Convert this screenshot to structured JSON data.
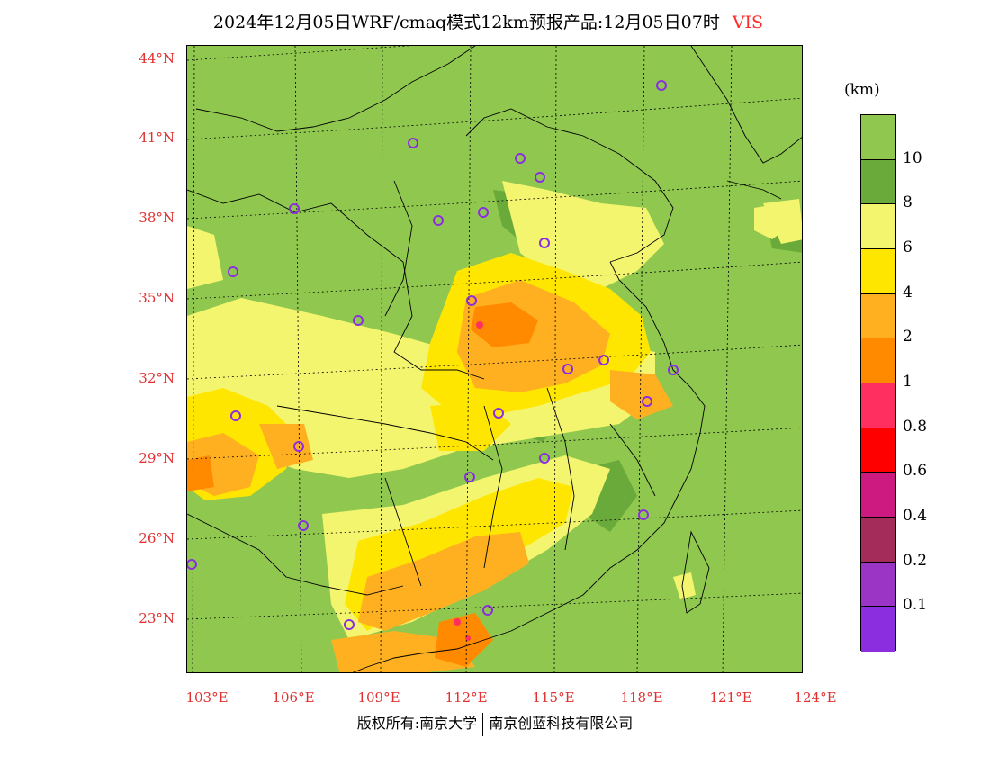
{
  "title": {
    "main": "2024年12月05日WRF/cmaq模式12km预报产品:12月05日07时",
    "variable": "VIS"
  },
  "map": {
    "lat_labels": [
      "44°N",
      "41°N",
      "38°N",
      "35°N",
      "32°N",
      "29°N",
      "26°N",
      "23°N"
    ],
    "lon_labels": [
      "103°E",
      "106°E",
      "109°E",
      "112°E",
      "115°E",
      "118°E",
      "121°E",
      "124°E"
    ],
    "background_color": "#90c84f"
  },
  "legend": {
    "units": "(km)",
    "blocks": [
      {
        "color": "#90c84f"
      },
      {
        "color": "#6aaa3a"
      },
      {
        "color": "#f4f56e"
      },
      {
        "color": "#ffe600"
      },
      {
        "color": "#ffb020"
      },
      {
        "color": "#ff8a00"
      },
      {
        "color": "#ff3060"
      },
      {
        "color": "#ff0000"
      },
      {
        "color": "#cc1a80"
      },
      {
        "color": "#a32c5a"
      },
      {
        "color": "#9a35c6"
      },
      {
        "color": "#8a2ee0"
      }
    ],
    "labels": [
      "10",
      "8",
      "6",
      "4",
      "2",
      "1",
      "0.8",
      "0.6",
      "0.4",
      "0.2",
      "0.1"
    ]
  },
  "credit": {
    "left": "版权所有:南京大学",
    "right": "南京创蓝科技有限公司"
  }
}
